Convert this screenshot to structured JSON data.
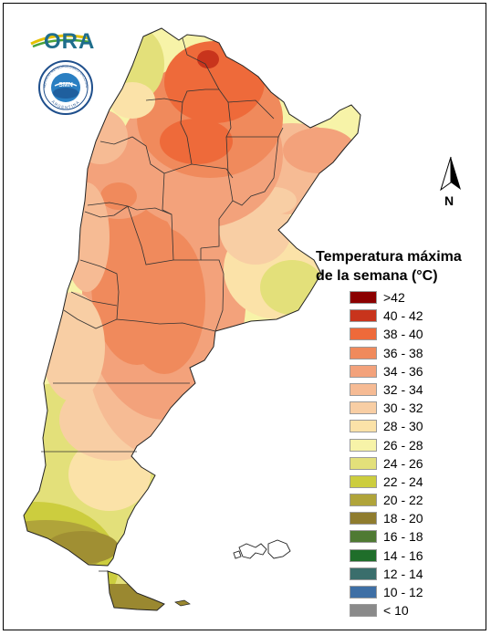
{
  "logos": {
    "ora": "ORA",
    "smn_ring": "SERVICIO METEOROLÓGICO NACIONAL",
    "smn_country": "ARGENTINA",
    "smn_center": "SMN"
  },
  "north_arrow": {
    "label": "N"
  },
  "legend": {
    "title_line1": "Temperatura máxima",
    "title_line2": "de la semana (°C)",
    "items": [
      {
        "label": ">42",
        "color": "#8b0000"
      },
      {
        "label": "40 - 42",
        "color": "#c8341c"
      },
      {
        "label": "38 - 40",
        "color": "#ee6a3a"
      },
      {
        "label": "36 - 38",
        "color": "#f08a5c"
      },
      {
        "label": "34 - 36",
        "color": "#f3a27b"
      },
      {
        "label": "32 - 34",
        "color": "#f6bb94"
      },
      {
        "label": "30 - 32",
        "color": "#f8cea4"
      },
      {
        "label": "28 - 30",
        "color": "#fbe2a8"
      },
      {
        "label": "26 - 28",
        "color": "#f7f3a8"
      },
      {
        "label": "24 - 26",
        "color": "#e3e07a"
      },
      {
        "label": "22 - 24",
        "color": "#cccd3e"
      },
      {
        "label": "20 - 22",
        "color": "#b0a43a"
      },
      {
        "label": "18 - 20",
        "color": "#8f7c2e"
      },
      {
        "label": "16 - 18",
        "color": "#4f7a33"
      },
      {
        "label": "14 - 16",
        "color": "#1f6e2a"
      },
      {
        "label": "12 - 14",
        "color": "#3a6e6c"
      },
      {
        "label": "10 - 12",
        "color": "#3e6fa5"
      },
      {
        "label": "< 10",
        "color": "#8a8a8a"
      }
    ]
  }
}
